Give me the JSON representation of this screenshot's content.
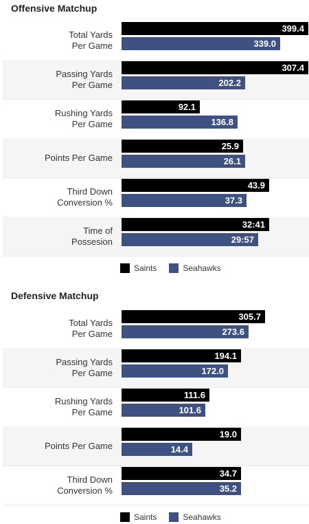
{
  "colors": {
    "saints": "#000000",
    "seahawks": "#3e5180"
  },
  "chart_data": [
    {
      "type": "bar",
      "orientation": "horizontal",
      "title": "Offensive Matchup",
      "categories": [
        "Total Yards\nPer Game",
        "Passing Yards\nPer Game",
        "Rushing Yards\nPer Game",
        "Points Per Game",
        "Third Down\nConversion %",
        "Time of\nPossesion"
      ],
      "series": [
        {
          "name": "Saints",
          "values": [
            399.4,
            307.4,
            92.1,
            25.9,
            43.9,
            32.68
          ],
          "labels": [
            "399.4",
            "307.4",
            "92.1",
            "25.9",
            "43.9",
            "32:41"
          ]
        },
        {
          "name": "Seahawks",
          "values": [
            339.0,
            202.2,
            136.8,
            26.1,
            37.3,
            29.95
          ],
          "labels": [
            "339.0",
            "202.2",
            "136.8",
            "26.1",
            "37.3",
            "29:57"
          ]
        }
      ],
      "bar_fraction": {
        "Saints": [
          1.0,
          1.0,
          0.42,
          0.65,
          0.79,
          0.79
        ],
        "Seahawks": [
          0.85,
          0.66,
          0.62,
          0.66,
          0.67,
          0.73
        ]
      },
      "legend": "bottom"
    },
    {
      "type": "bar",
      "orientation": "horizontal",
      "title": "Defensive Matchup",
      "categories": [
        "Total Yards\nPer Game",
        "Passing Yards\nPer Game",
        "Rushing Yards\nPer Game",
        "Points Per Game",
        "Third Down\nConversion %"
      ],
      "series": [
        {
          "name": "Saints",
          "values": [
            305.7,
            194.1,
            111.6,
            19.0,
            34.7
          ],
          "labels": [
            "305.7",
            "194.1",
            "111.6",
            "19.0",
            "34.7"
          ]
        },
        {
          "name": "Seahawks",
          "values": [
            273.6,
            172.0,
            101.6,
            14.4,
            35.2
          ],
          "labels": [
            "273.6",
            "172.0",
            "101.6",
            "14.4",
            "35.2"
          ]
        }
      ],
      "bar_fraction": {
        "Saints": [
          0.77,
          0.64,
          0.47,
          0.64,
          0.64
        ],
        "Seahawks": [
          0.68,
          0.57,
          0.45,
          0.38,
          0.64
        ]
      },
      "legend": "bottom"
    }
  ]
}
